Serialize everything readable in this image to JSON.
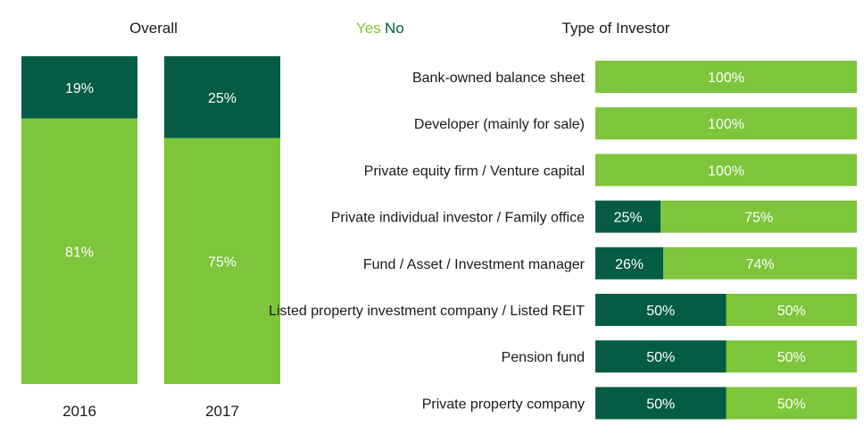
{
  "colors": {
    "yes": "#7dc53a",
    "no": "#045c44",
    "text": "#1a1a1a",
    "bar_text": "#ffffff"
  },
  "chart_data": [
    {
      "type": "bar",
      "stacked": true,
      "orientation": "vertical",
      "title": "Overall",
      "categories": [
        "2016",
        "2017"
      ],
      "series": [
        {
          "name": "Yes",
          "values": [
            81,
            75
          ]
        },
        {
          "name": "No",
          "values": [
            19,
            25
          ]
        }
      ],
      "data_labels": {
        "Yes": [
          "81%",
          "75%"
        ],
        "No": [
          "19%",
          "25%"
        ]
      },
      "ylim": [
        0,
        100
      ],
      "grid": false
    },
    {
      "type": "bar",
      "stacked": true,
      "orientation": "horizontal",
      "title": "Type of Investor",
      "legend": {
        "placement": "top-left",
        "entries": [
          "Yes",
          "No"
        ]
      },
      "categories": [
        "Bank-owned balance sheet",
        "Developer (mainly for sale)",
        "Private equity firm / Venture capital",
        "Private individual investor / Family office",
        "Fund / Asset / Investment manager",
        "Listed property investment company / Listed REIT",
        "Pension fund",
        "Private property company"
      ],
      "series": [
        {
          "name": "No",
          "values": [
            0,
            0,
            0,
            25,
            26,
            50,
            50,
            50
          ]
        },
        {
          "name": "Yes",
          "values": [
            100,
            100,
            100,
            75,
            74,
            50,
            50,
            50
          ]
        }
      ],
      "data_labels": {
        "No": [
          "",
          "",
          "",
          "25%",
          "26%",
          "50%",
          "50%",
          "50%"
        ],
        "Yes": [
          "100%",
          "100%",
          "100%",
          "75%",
          "74%",
          "50%",
          "50%",
          "50%"
        ]
      },
      "xlim": [
        0,
        100
      ],
      "grid": false
    }
  ]
}
